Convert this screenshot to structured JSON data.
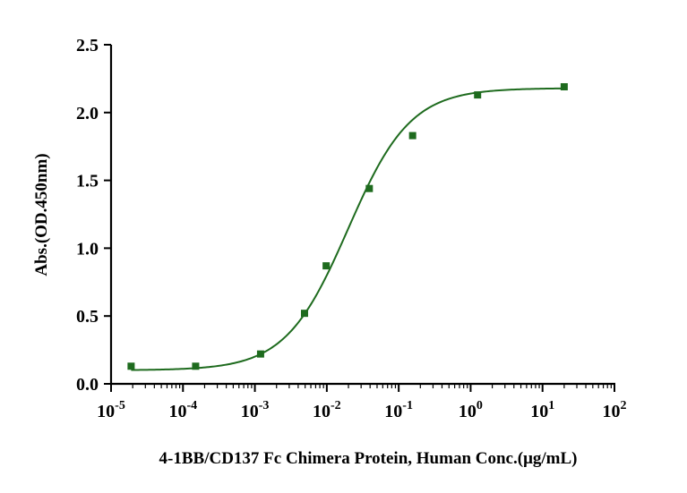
{
  "chart_data": {
    "type": "scatter",
    "title": "",
    "xlabel": "4-1BB/CD137 Fc Chimera Protein, Human Conc.(μg/mL)",
    "ylabel": "Abs.(OD.450nm)",
    "x_scale": "log10",
    "xlim": [
      1e-05,
      100
    ],
    "ylim": [
      0,
      2.5
    ],
    "x_ticks": [
      {
        "value": 1e-05,
        "base": "10",
        "exp": "-5"
      },
      {
        "value": 0.0001,
        "base": "10",
        "exp": "-4"
      },
      {
        "value": 0.001,
        "base": "10",
        "exp": "-3"
      },
      {
        "value": 0.01,
        "base": "10",
        "exp": "-2"
      },
      {
        "value": 0.1,
        "base": "10",
        "exp": "-1"
      },
      {
        "value": 1,
        "base": "10",
        "exp": "0"
      },
      {
        "value": 10,
        "base": "10",
        "exp": "1"
      },
      {
        "value": 100,
        "base": "10",
        "exp": "2"
      }
    ],
    "y_ticks": [
      {
        "value": 0,
        "label": "0.0"
      },
      {
        "value": 0.5,
        "label": "0.5"
      },
      {
        "value": 1,
        "label": "1.0"
      },
      {
        "value": 1.5,
        "label": "1.5"
      },
      {
        "value": 2,
        "label": "2.0"
      },
      {
        "value": 2.5,
        "label": "2.5"
      }
    ],
    "grid": false,
    "legend": "none",
    "series": [
      {
        "color": "#1e6b1e",
        "marker": "square",
        "points": [
          {
            "x": 1.9e-05,
            "y": 0.13
          },
          {
            "x": 0.00015,
            "y": 0.13
          },
          {
            "x": 0.0012,
            "y": 0.22
          },
          {
            "x": 0.0049,
            "y": 0.52
          },
          {
            "x": 0.0098,
            "y": 0.87
          },
          {
            "x": 0.039,
            "y": 1.44
          },
          {
            "x": 0.156,
            "y": 1.83
          },
          {
            "x": 1.25,
            "y": 2.13
          },
          {
            "x": 20,
            "y": 2.19
          }
        ],
        "fit": {
          "model": "4PL",
          "bottom": 0.1,
          "top": 2.18,
          "ec50": 0.0197,
          "hill": 1.0
        }
      }
    ]
  }
}
